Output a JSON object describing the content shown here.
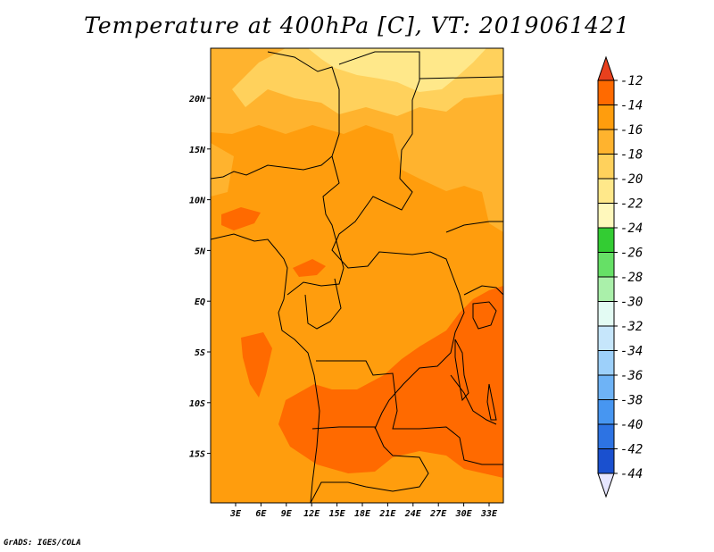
{
  "title": "Temperature at 400hPa [C], VT: 2019061421",
  "credit": "GrADS: IGES/COLA",
  "lat_labels": [
    "20N",
    "15N",
    "10N",
    "5N",
    "EQ",
    "5S",
    "10S",
    "15S"
  ],
  "lon_labels": [
    "3E",
    "6E",
    "9E",
    "12E",
    "15E",
    "18E",
    "21E",
    "24E",
    "27E",
    "30E",
    "33E"
  ],
  "colorbar": {
    "labels": [
      "-12",
      "-14",
      "-16",
      "-18",
      "-20",
      "-22",
      "-24",
      "-26",
      "-28",
      "-30",
      "-32",
      "-34",
      "-36",
      "-38",
      "-40",
      "-42",
      "-44"
    ],
    "colors": [
      "#e8401d",
      "#ff6a00",
      "#ff9d0d",
      "#ffb32e",
      "#ffd15c",
      "#ffe88a",
      "#fff8bc",
      "#33cc33",
      "#66e066",
      "#aaf0aa",
      "#e3fbf3",
      "#c6e6fb",
      "#9dd0fa",
      "#6eb3f6",
      "#4796f1",
      "#2d73e3",
      "#1a50cf",
      "#1030b0",
      "#0a0a78",
      "#e6e6ff"
    ]
  },
  "legend_field_colors": {
    "minus_12_to_14": "#ff6a00",
    "minus_14_to_16": "#ff9d0d",
    "minus_16_to_18": "#ffb32e",
    "minus_18_to_20": "#ffd15c",
    "minus_20_to_22": "#ffe88a"
  }
}
